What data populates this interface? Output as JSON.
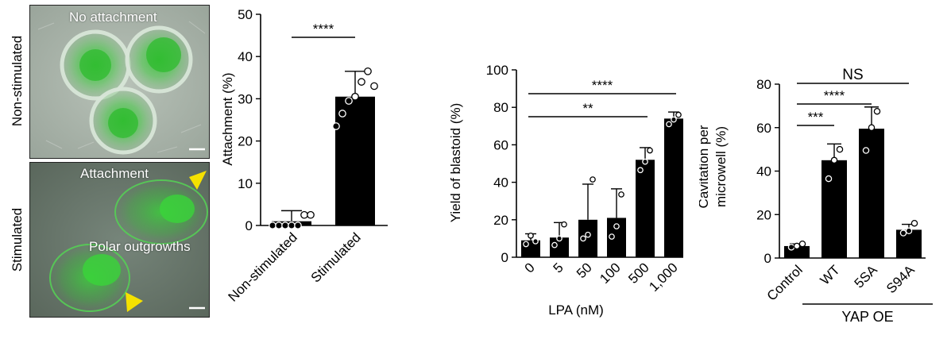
{
  "figure": {
    "row_labels": [
      "Non-stimulated",
      "Stimulated"
    ],
    "image_labels": {
      "top": "No attachment",
      "bottom_1": "Attachment",
      "bottom_2": "Polar outgrowths"
    },
    "colors": {
      "bar": "#000000",
      "fluorescence": "#3ecb3e",
      "arrowhead": "#f5e100",
      "micrograph_bg_top": "#a9b3a9",
      "micrograph_bg_bottom": "#6b7a6e"
    }
  },
  "chart_data": [
    {
      "type": "bar",
      "id": "attachment",
      "categories": [
        "Non-stimulated",
        "Stimulated"
      ],
      "values": [
        1,
        30.5
      ],
      "errors": [
        2.5,
        6
      ],
      "points": [
        [
          0,
          0,
          0,
          0,
          0,
          2.5,
          2.5
        ],
        [
          23.5,
          26.5,
          29.5,
          30.5,
          34,
          36.5,
          33
        ]
      ],
      "ylabel": "Attachment (%)",
      "xlabel": "",
      "ylim": [
        0,
        50
      ],
      "yticks": [
        0,
        10,
        20,
        30,
        40,
        50
      ],
      "significance": [
        {
          "from": 0,
          "to": 1,
          "label": "****"
        }
      ]
    },
    {
      "type": "bar",
      "id": "blastoid",
      "categories": [
        "0",
        "5",
        "50",
        "100",
        "500",
        "1,000"
      ],
      "values": [
        9,
        10.5,
        20,
        21,
        52,
        74
      ],
      "errors": [
        3.5,
        8,
        19,
        15.5,
        6.5,
        3.5
      ],
      "points": [
        [
          7,
          11.5,
          8.5
        ],
        [
          6.5,
          10,
          17.5
        ],
        [
          10,
          12,
          41.5
        ],
        [
          11,
          16.5,
          33.5
        ],
        [
          46.5,
          51,
          57
        ],
        [
          71,
          73.5,
          76
        ]
      ],
      "ylabel": "Yield of blastoid (%)",
      "xlabel": "LPA (nM)",
      "ylim": [
        0,
        100
      ],
      "yticks": [
        0,
        20,
        40,
        60,
        80,
        100
      ],
      "significance": [
        {
          "from": 0,
          "to": 4,
          "label": "**"
        },
        {
          "from": 0,
          "to": 5,
          "label": "****"
        }
      ]
    },
    {
      "type": "bar",
      "id": "cavitation",
      "categories": [
        "Control",
        "WT",
        "5SA",
        "S94A"
      ],
      "values": [
        5.5,
        45,
        59.5,
        13
      ],
      "errors": [
        1,
        7.5,
        10,
        2.5
      ],
      "points": [
        [
          5,
          5.5,
          6.5
        ],
        [
          36.5,
          45,
          50
        ],
        [
          49.5,
          60,
          67.5
        ],
        [
          11.5,
          12.5,
          16
        ]
      ],
      "ylabel": "Cavitation per microwell (%)",
      "ylabel_lines": [
        "Cavitation per",
        "microwell (%)"
      ],
      "xlabel": "",
      "group_label": "YAP OE",
      "group_from": 1,
      "group_to": 3,
      "ylim": [
        0,
        80
      ],
      "yticks": [
        0,
        20,
        40,
        60,
        80
      ],
      "significance": [
        {
          "from": 0,
          "to": 1,
          "label": "***"
        },
        {
          "from": 0,
          "to": 2,
          "label": "****"
        },
        {
          "from": 0,
          "to": 3,
          "label": "NS"
        }
      ]
    }
  ]
}
